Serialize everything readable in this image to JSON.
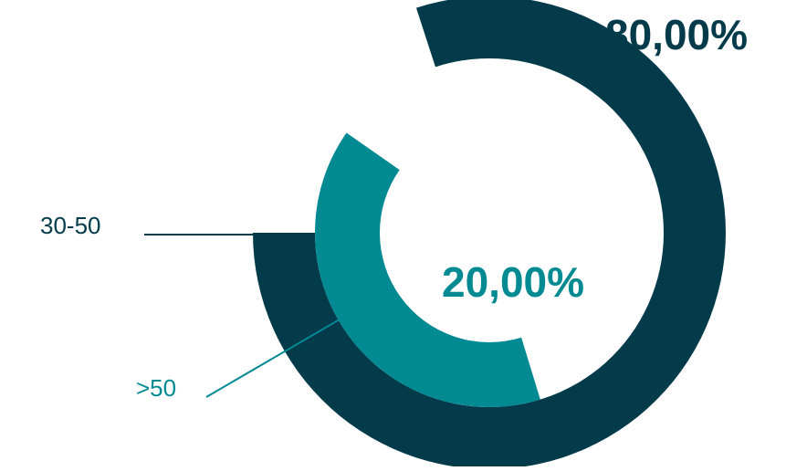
{
  "chart_data": {
    "type": "radial-bar",
    "series": [
      {
        "category": "30-50",
        "value": 80.0,
        "value_label": "80,00%",
        "color": "#033b4a"
      },
      {
        "category": ">50",
        "value": 20.0,
        "value_label": "20,00%",
        "color": "#028a93"
      }
    ]
  }
}
